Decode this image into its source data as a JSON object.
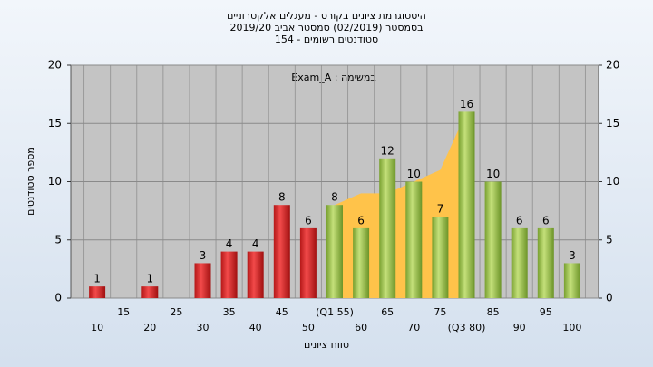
{
  "chart_data": {
    "type": "bar",
    "title": "היסטוגרמת ציונים בקורס - מעגלים אלקטרוניים",
    "subtitle": "בסמסטר  (02/2019)  סמסטר אביב 2019/20",
    "subtitle2": "סטודנטים רשומים - 154",
    "annotation": "Exam_A : במשימה",
    "x_label": "טווח ציונים",
    "y_label": "מספר סטודנטים",
    "categories": [
      "10",
      "15",
      "20",
      "25",
      "30",
      "35",
      "40",
      "45",
      "50",
      "(Q1 55)",
      "60",
      "65",
      "70",
      "75",
      "(Q3 80)",
      "85",
      "90",
      "95",
      "100"
    ],
    "values": [
      1,
      0,
      1,
      0,
      3,
      4,
      4,
      8,
      6,
      8,
      6,
      12,
      10,
      7,
      16,
      10,
      6,
      6,
      3
    ],
    "colors": [
      "red",
      "red",
      "red",
      "red",
      "red",
      "red",
      "red",
      "red",
      "red",
      "green",
      "green",
      "green",
      "green",
      "green",
      "green",
      "green",
      "green",
      "green",
      "green"
    ],
    "area": {
      "color": "#ffc34a",
      "values": [
        null,
        null,
        null,
        null,
        null,
        null,
        null,
        null,
        null,
        8,
        9,
        9,
        10,
        11,
        16,
        null,
        null,
        null,
        null
      ]
    },
    "ylim": [
      0,
      20
    ],
    "yticks": [
      0,
      5,
      10,
      15,
      20
    ],
    "y2lim": [
      0,
      20
    ],
    "y2ticks": [
      0,
      5,
      10,
      15,
      20
    ],
    "grid": true
  }
}
